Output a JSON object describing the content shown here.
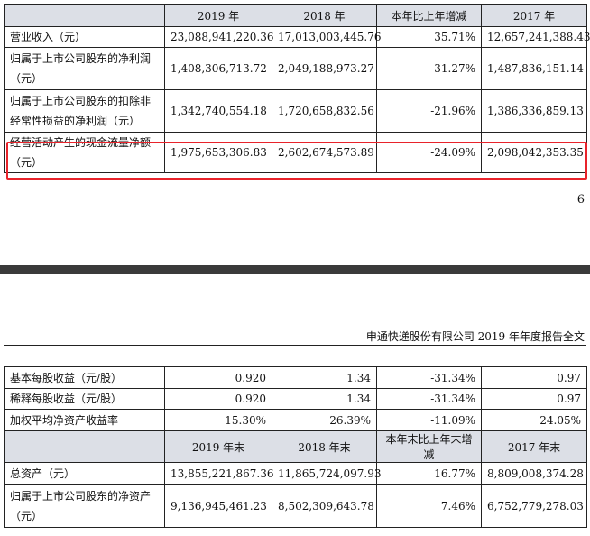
{
  "table1": {
    "headers": [
      "",
      "2019 年",
      "2018 年",
      "本年比上年增减",
      "2017 年"
    ],
    "rows": [
      {
        "label": "营业收入（元）",
        "values": [
          "23,088,941,220.36",
          "17,013,003,445.76",
          "35.71%",
          "12,657,241,388.43"
        ]
      },
      {
        "label": "归属于上市公司股东的净利润（元）",
        "values": [
          "1,408,306,713.72",
          "2,049,188,973.27",
          "-31.27%",
          "1,487,836,151.14"
        ]
      },
      {
        "label": "归属于上市公司股东的扣除非经常性损益的净利润（元）",
        "values": [
          "1,342,740,554.18",
          "1,720,658,832.56",
          "-21.96%",
          "1,386,336,859.13"
        ]
      },
      {
        "label": "经营活动产生的现金流量净额（元）",
        "values": [
          "1,975,653,306.83",
          "2,602,674,573.89",
          "-24.09%",
          "2,098,042,353.35"
        ]
      }
    ]
  },
  "highlight_color": "#e8232b",
  "page_number": "6",
  "report_header": "申通快递股份有限公司 2019 年年度报告全文",
  "table2": {
    "rows_top": [
      {
        "label": "基本每股收益（元/股）",
        "values": [
          "0.920",
          "1.34",
          "-31.34%",
          "0.97"
        ]
      },
      {
        "label": "稀释每股收益（元/股）",
        "values": [
          "0.920",
          "1.34",
          "-31.34%",
          "0.97"
        ]
      },
      {
        "label": "加权平均净资产收益率",
        "values": [
          "15.30%",
          "26.39%",
          "-11.09%",
          "24.05%"
        ]
      }
    ],
    "headers": [
      "",
      "2019 年末",
      "2018 年末",
      "本年末比上年末增减",
      "2017 年末"
    ],
    "rows_bottom": [
      {
        "label": "总资产（元）",
        "values": [
          "13,855,221,867.36",
          "11,865,724,097.93",
          "16.77%",
          "8,809,008,374.28"
        ]
      },
      {
        "label": "归属于上市公司股东的净资产（元）",
        "values": [
          "9,136,945,461.23",
          "8,502,309,643.78",
          "7.46%",
          "6,752,779,278.03"
        ]
      }
    ]
  }
}
